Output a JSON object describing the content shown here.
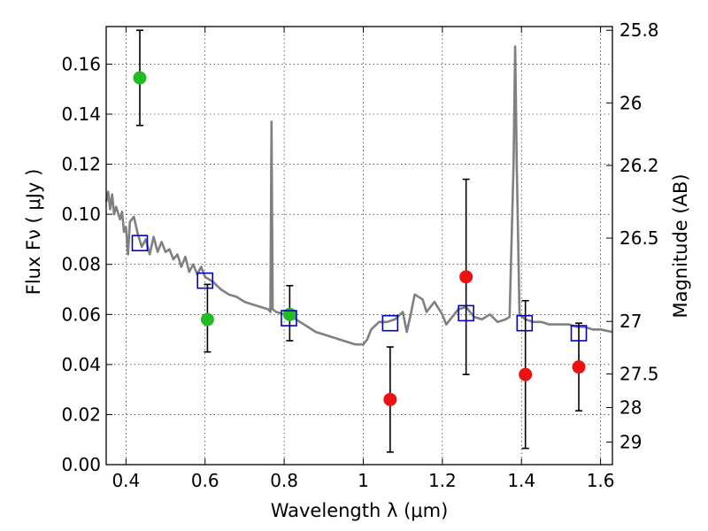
{
  "chart_data": {
    "type": "scatter",
    "xlabel": "Wavelength  λ (μm)",
    "ylabel": "Flux  Fν  ( μJy )",
    "ylabel_right": "Magnitude (AB)",
    "xlim": [
      0.35,
      1.63
    ],
    "ylim": [
      0.0,
      0.175
    ],
    "x_ticks": [
      0.4,
      0.6,
      0.8,
      1.0,
      1.2,
      1.4,
      1.6
    ],
    "x_tick_labels": [
      "0.4",
      "0.6",
      "0.8",
      "1",
      "1.2",
      "1.4",
      "1.6"
    ],
    "y_ticks": [
      0.0,
      0.02,
      0.04,
      0.06,
      0.08,
      0.1,
      0.12,
      0.14,
      0.16
    ],
    "y_tick_labels": [
      "0.00",
      "0.02",
      "0.04",
      "0.06",
      "0.08",
      "0.10",
      "0.12",
      "0.14",
      "0.16"
    ],
    "right_ticks": [
      {
        "label": "25.8",
        "flux": 0.1735
      },
      {
        "label": "26",
        "flux": 0.1445
      },
      {
        "label": "26.2",
        "flux": 0.1195
      },
      {
        "label": "26.5",
        "flux": 0.0905
      },
      {
        "label": "27",
        "flux": 0.0572
      },
      {
        "label": "27.5",
        "flux": 0.0362
      },
      {
        "label": "28",
        "flux": 0.0228
      },
      {
        "label": "29",
        "flux": 0.009
      }
    ],
    "grid": true,
    "colors": {
      "green": "#22bb22",
      "red": "#ee1111",
      "model_box": "#0000cc",
      "sed_line": "#808080",
      "errorbar": "#000000"
    },
    "series": [
      {
        "marker": "circle",
        "color": "green",
        "points": [
          {
            "x": 0.435,
            "y": 0.1545,
            "ylo": 0.1355,
            "yhi": 0.1735
          },
          {
            "x": 0.606,
            "y": 0.058,
            "ylo": 0.045,
            "yhi": 0.072
          },
          {
            "x": 0.814,
            "y": 0.06,
            "ylo": 0.0495,
            "yhi": 0.0715
          }
        ]
      },
      {
        "marker": "circle",
        "color": "red",
        "points": [
          {
            "x": 1.068,
            "y": 0.026,
            "ylo": 0.005,
            "yhi": 0.047
          },
          {
            "x": 1.26,
            "y": 0.075,
            "ylo": 0.036,
            "yhi": 0.114
          },
          {
            "x": 1.41,
            "y": 0.036,
            "ylo": 0.0065,
            "yhi": 0.0655
          },
          {
            "x": 1.545,
            "y": 0.039,
            "ylo": 0.0215,
            "yhi": 0.0565
          }
        ]
      },
      {
        "marker": "open-square",
        "color": "model_box",
        "points": [
          {
            "x": 0.435,
            "y": 0.0885
          },
          {
            "x": 0.6,
            "y": 0.0735
          },
          {
            "x": 0.812,
            "y": 0.0585
          },
          {
            "x": 1.068,
            "y": 0.0565
          },
          {
            "x": 1.26,
            "y": 0.0605
          },
          {
            "x": 1.408,
            "y": 0.0565
          },
          {
            "x": 1.545,
            "y": 0.0525
          }
        ]
      },
      {
        "marker": "line",
        "color": "sed_line",
        "points": [
          [
            0.35,
            0.105
          ],
          [
            0.355,
            0.109
          ],
          [
            0.36,
            0.102
          ],
          [
            0.365,
            0.108
          ],
          [
            0.37,
            0.1
          ],
          [
            0.375,
            0.103
          ],
          [
            0.385,
            0.098
          ],
          [
            0.39,
            0.101
          ],
          [
            0.395,
            0.093
          ],
          [
            0.4,
            0.095
          ],
          [
            0.405,
            0.084
          ],
          [
            0.41,
            0.097
          ],
          [
            0.42,
            0.099
          ],
          [
            0.43,
            0.092
          ],
          [
            0.44,
            0.087
          ],
          [
            0.45,
            0.09
          ],
          [
            0.46,
            0.084
          ],
          [
            0.47,
            0.091
          ],
          [
            0.48,
            0.085
          ],
          [
            0.49,
            0.089
          ],
          [
            0.5,
            0.085
          ],
          [
            0.51,
            0.086
          ],
          [
            0.52,
            0.082
          ],
          [
            0.53,
            0.084
          ],
          [
            0.54,
            0.079
          ],
          [
            0.55,
            0.083
          ],
          [
            0.56,
            0.077
          ],
          [
            0.57,
            0.08
          ],
          [
            0.58,
            0.076
          ],
          [
            0.59,
            0.079
          ],
          [
            0.6,
            0.075
          ],
          [
            0.62,
            0.073
          ],
          [
            0.64,
            0.07
          ],
          [
            0.66,
            0.068
          ],
          [
            0.68,
            0.067
          ],
          [
            0.7,
            0.065
          ],
          [
            0.72,
            0.064
          ],
          [
            0.74,
            0.063
          ],
          [
            0.76,
            0.062
          ],
          [
            0.765,
            0.061
          ],
          [
            0.768,
            0.137
          ],
          [
            0.771,
            0.062
          ],
          [
            0.78,
            0.061
          ],
          [
            0.8,
            0.06
          ],
          [
            0.82,
            0.059
          ],
          [
            0.84,
            0.057
          ],
          [
            0.86,
            0.055
          ],
          [
            0.88,
            0.053
          ],
          [
            0.9,
            0.052
          ],
          [
            0.92,
            0.051
          ],
          [
            0.94,
            0.05
          ],
          [
            0.96,
            0.049
          ],
          [
            0.98,
            0.048
          ],
          [
            1.0,
            0.048
          ],
          [
            1.01,
            0.05
          ],
          [
            1.02,
            0.054
          ],
          [
            1.04,
            0.057
          ],
          [
            1.06,
            0.057
          ],
          [
            1.08,
            0.058
          ],
          [
            1.1,
            0.061
          ],
          [
            1.11,
            0.053
          ],
          [
            1.12,
            0.06
          ],
          [
            1.13,
            0.068
          ],
          [
            1.15,
            0.066
          ],
          [
            1.16,
            0.061
          ],
          [
            1.18,
            0.065
          ],
          [
            1.2,
            0.06
          ],
          [
            1.21,
            0.056
          ],
          [
            1.22,
            0.058
          ],
          [
            1.24,
            0.062
          ],
          [
            1.26,
            0.063
          ],
          [
            1.28,
            0.059
          ],
          [
            1.3,
            0.058
          ],
          [
            1.32,
            0.06
          ],
          [
            1.34,
            0.057
          ],
          [
            1.36,
            0.058
          ],
          [
            1.37,
            0.059
          ],
          [
            1.38,
            0.12
          ],
          [
            1.384,
            0.167
          ],
          [
            1.388,
            0.12
          ],
          [
            1.395,
            0.06
          ],
          [
            1.41,
            0.058
          ],
          [
            1.43,
            0.057
          ],
          [
            1.45,
            0.057
          ],
          [
            1.47,
            0.056
          ],
          [
            1.5,
            0.056
          ],
          [
            1.52,
            0.056
          ],
          [
            1.54,
            0.055
          ],
          [
            1.56,
            0.055
          ],
          [
            1.58,
            0.054
          ],
          [
            1.6,
            0.054
          ],
          [
            1.63,
            0.053
          ]
        ]
      }
    ]
  }
}
